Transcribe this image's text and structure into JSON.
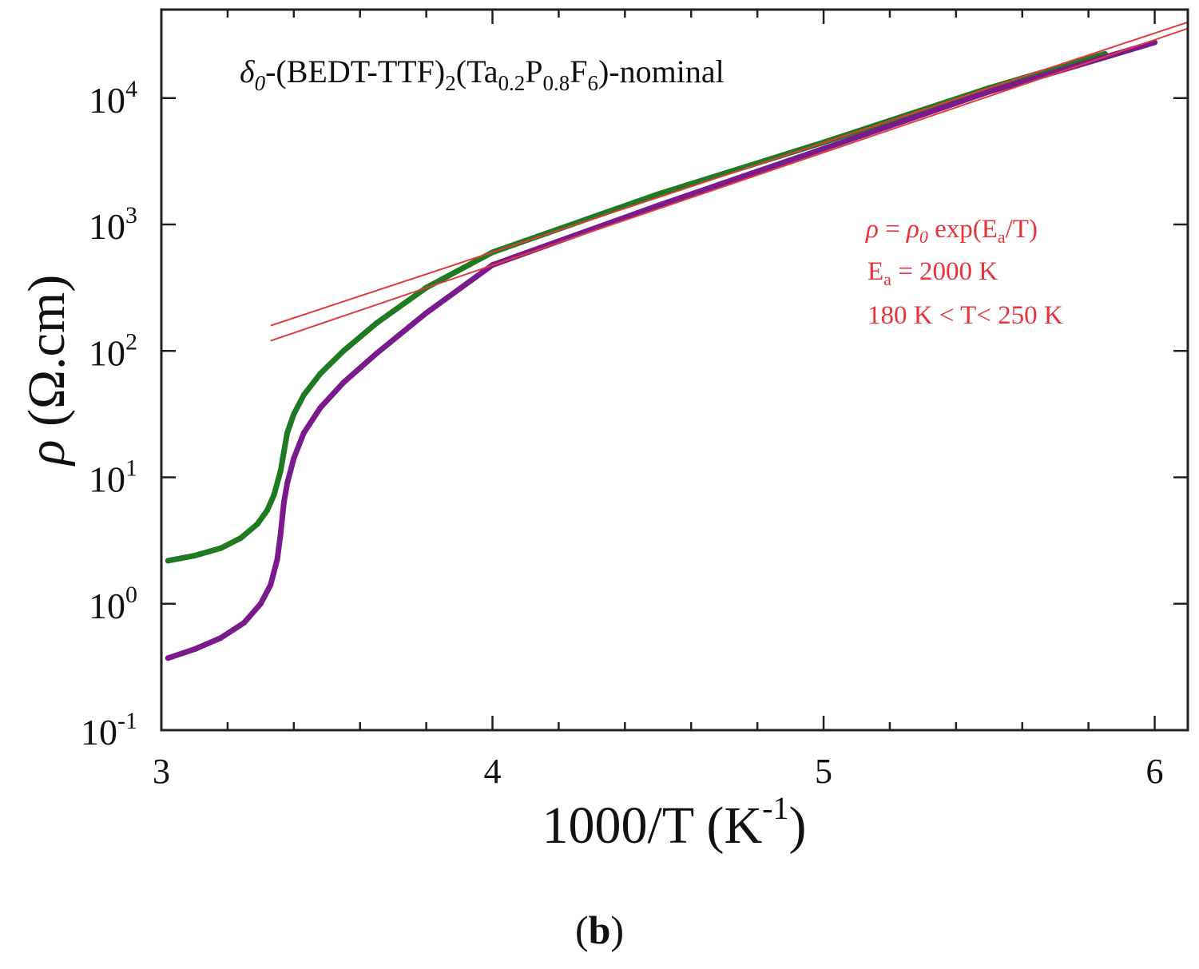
{
  "chart_data": {
    "type": "scatter",
    "title_parts": {
      "delta": "δ",
      "delta_sub": "0",
      "prefix": "-(BEDT-TTF)",
      "sub2": "2",
      "ta": "(Ta",
      "ta_sub": "0.2",
      "p": "P",
      "p_sub": "0.8",
      "f": "F",
      "f_sub": "6",
      "suffix": ")-nominal"
    },
    "xlabel_parts": {
      "main": "1000/T (K",
      "sup": "-1",
      "end": ")"
    },
    "ylabel_parts": {
      "rho": "ρ",
      "unit": " (Ω.cm)"
    },
    "xlim": [
      3.0,
      6.1
    ],
    "ylim_log10": [
      -1.0,
      4.7
    ],
    "xticks": [
      {
        "value": 3,
        "label": "3"
      },
      {
        "value": 4,
        "label": "4"
      },
      {
        "value": 5,
        "label": "5"
      },
      {
        "value": 6,
        "label": "6"
      }
    ],
    "yticks": [
      {
        "exp": -1,
        "base": "10",
        "label": "-1"
      },
      {
        "exp": 0,
        "base": "10",
        "label": "0"
      },
      {
        "exp": 1,
        "base": "10",
        "label": "1"
      },
      {
        "exp": 2,
        "base": "10",
        "label": "2"
      },
      {
        "exp": 3,
        "base": "10",
        "label": "3"
      },
      {
        "exp": 4,
        "base": "10",
        "label": "4"
      }
    ],
    "series": [
      {
        "name": "sample-green",
        "color": "#1f7a22",
        "points": [
          [
            3.02,
            0.34
          ],
          [
            3.1,
            0.38
          ],
          [
            3.18,
            0.44
          ],
          [
            3.24,
            0.52
          ],
          [
            3.29,
            0.63
          ],
          [
            3.32,
            0.74
          ],
          [
            3.34,
            0.86
          ],
          [
            3.36,
            1.05
          ],
          [
            3.37,
            1.2
          ],
          [
            3.38,
            1.35
          ],
          [
            3.4,
            1.5
          ],
          [
            3.43,
            1.65
          ],
          [
            3.48,
            1.82
          ],
          [
            3.55,
            2.0
          ],
          [
            3.65,
            2.22
          ],
          [
            3.8,
            2.5
          ],
          [
            4.0,
            2.78
          ],
          [
            4.5,
            3.24
          ],
          [
            5.0,
            3.65
          ],
          [
            5.5,
            4.08
          ],
          [
            5.85,
            4.35
          ]
        ]
      },
      {
        "name": "sample-purple",
        "color": "#7b1a8c",
        "points": [
          [
            3.02,
            -0.43
          ],
          [
            3.1,
            -0.36
          ],
          [
            3.18,
            -0.27
          ],
          [
            3.25,
            -0.15
          ],
          [
            3.3,
            0.0
          ],
          [
            3.33,
            0.15
          ],
          [
            3.35,
            0.35
          ],
          [
            3.36,
            0.55
          ],
          [
            3.37,
            0.8
          ],
          [
            3.38,
            0.95
          ],
          [
            3.4,
            1.15
          ],
          [
            3.43,
            1.35
          ],
          [
            3.48,
            1.55
          ],
          [
            3.55,
            1.75
          ],
          [
            3.65,
            1.98
          ],
          [
            3.8,
            2.3
          ],
          [
            4.0,
            2.68
          ],
          [
            4.5,
            3.15
          ],
          [
            5.0,
            3.6
          ],
          [
            5.5,
            4.05
          ],
          [
            6.0,
            4.44
          ]
        ]
      }
    ],
    "fit_lines": [
      {
        "name": "fit-1",
        "color": "#e23b3b",
        "x": [
          3.33,
          6.1
        ],
        "y": [
          2.2,
          4.6
        ]
      },
      {
        "name": "fit-2",
        "color": "#e23b3b",
        "x": [
          3.33,
          6.1
        ],
        "y": [
          2.08,
          4.55
        ]
      }
    ],
    "annotation": {
      "color": "#e8333a",
      "line1_rho": "ρ",
      "line1_eq": " = ",
      "line1_rho0": "ρ",
      "line1_rho0_sub": "0",
      "line1_rest": " exp(E",
      "line1_sub": "a",
      "line1_end": "/T)",
      "line2_e": "E",
      "line2_sub": "a",
      "line2_rest": " = 2000 K",
      "line3": "180 K < T< 250 K"
    },
    "panel_label": {
      "open": "(",
      "letter": "b",
      "close": ")"
    }
  }
}
